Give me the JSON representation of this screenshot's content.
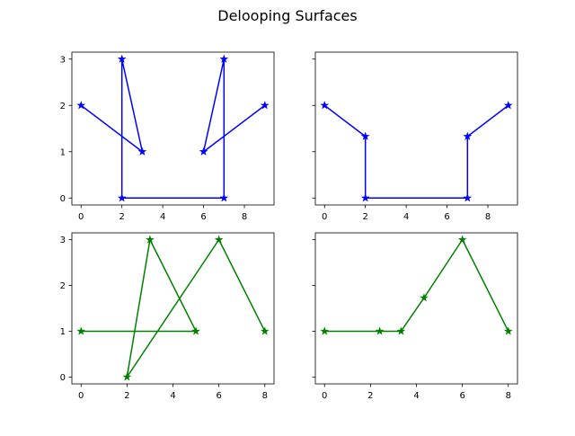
{
  "figure": {
    "title": "Delooping Surfaces"
  },
  "chart_data": [
    {
      "type": "line",
      "panel": "top-left",
      "color": "#0000ff",
      "marker": "star",
      "xlim": [
        -0.45,
        9.45
      ],
      "ylim": [
        -0.15,
        3.15
      ],
      "xticks": [
        0,
        2,
        4,
        6,
        8
      ],
      "yticks": [
        0,
        1,
        2,
        3
      ],
      "show_ytick_labels": true,
      "x": [
        0,
        3,
        2,
        2,
        7,
        7,
        6,
        9
      ],
      "y": [
        2,
        1,
        3,
        0,
        0,
        3,
        1,
        2
      ]
    },
    {
      "type": "line",
      "panel": "top-right",
      "color": "#0000ff",
      "marker": "star",
      "xlim": [
        -0.45,
        9.45
      ],
      "ylim": [
        -0.15,
        3.15
      ],
      "xticks": [
        0,
        2,
        4,
        6,
        8
      ],
      "yticks": [
        0,
        1,
        2,
        3
      ],
      "show_ytick_labels": false,
      "x": [
        0,
        2,
        2,
        7,
        7,
        9
      ],
      "y": [
        2,
        1.33,
        0,
        0,
        1.33,
        2
      ]
    },
    {
      "type": "line",
      "panel": "bottom-left",
      "color": "#008000",
      "marker": "star",
      "xlim": [
        -0.4,
        8.4
      ],
      "ylim": [
        -0.15,
        3.15
      ],
      "xticks": [
        0,
        2,
        4,
        6,
        8
      ],
      "yticks": [
        0,
        1,
        2,
        3
      ],
      "show_ytick_labels": true,
      "x": [
        0,
        5,
        3,
        2,
        6,
        8
      ],
      "y": [
        1,
        1,
        3,
        0,
        3,
        1
      ]
    },
    {
      "type": "line",
      "panel": "bottom-right",
      "color": "#008000",
      "marker": "star",
      "xlim": [
        -0.4,
        8.4
      ],
      "ylim": [
        -0.15,
        3.15
      ],
      "xticks": [
        0,
        2,
        4,
        6,
        8
      ],
      "yticks": [
        0,
        1,
        2,
        3
      ],
      "show_ytick_labels": false,
      "x": [
        0,
        2.4,
        3.33,
        4.33,
        6,
        8
      ],
      "y": [
        1,
        1,
        1,
        1.73,
        3,
        1
      ]
    }
  ]
}
